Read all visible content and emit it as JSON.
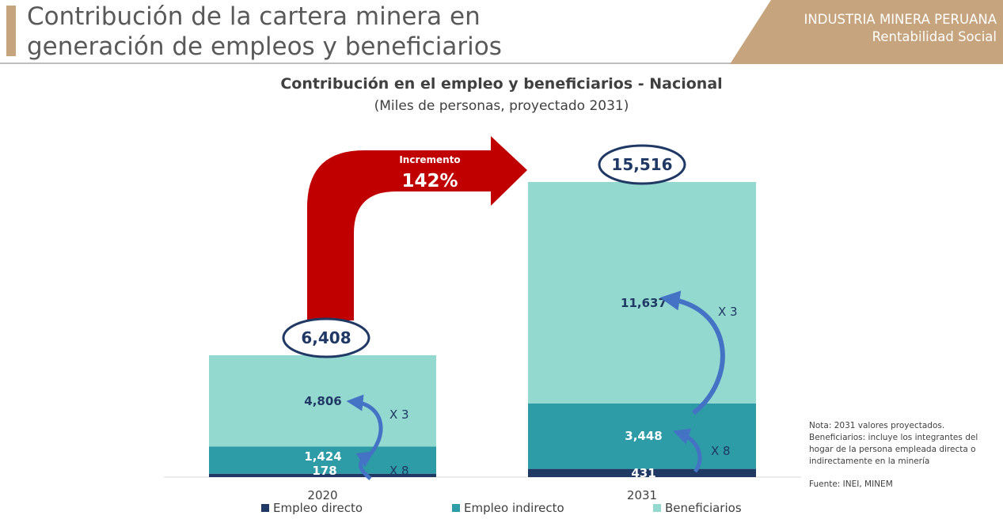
{
  "header": {
    "title_line1": "Contribución de la cartera minera en",
    "title_line2": "generación de empleos y beneficiarios",
    "brand_line1": "INDUSTRIA MINERA PERUANA",
    "brand_line2": "Rentabilidad Social",
    "accent_color": "#c5a47e"
  },
  "chart_data": {
    "type": "bar",
    "stacked": true,
    "title": "Contribución en el empleo y beneficiarios - Nacional",
    "subtitle": "(Miles de personas, proyectado 2031)",
    "categories": [
      "2020",
      "2031"
    ],
    "series": [
      {
        "name": "Empleo directo",
        "values": [
          178,
          431
        ],
        "color": "#1f3864"
      },
      {
        "name": "Empleo indirecto",
        "values": [
          1424,
          3448
        ],
        "color": "#2e9ca6"
      },
      {
        "name": "Beneficiarios",
        "values": [
          4806,
          11637
        ],
        "color": "#93d9d0"
      }
    ],
    "totals": [
      {
        "value": 6408,
        "label": "6,408"
      },
      {
        "value": 15516,
        "label": "15,516"
      }
    ],
    "value_labels": [
      [
        "178",
        "1,424",
        "4,806"
      ],
      [
        "431",
        "3,448",
        "11,637"
      ]
    ],
    "multipliers": [
      [
        "X 8",
        "X 3"
      ],
      [
        "X 8",
        "X 3"
      ]
    ],
    "increase": {
      "label": "Incremento",
      "value": "142%",
      "color": "#c00000"
    },
    "legend_position": "bottom",
    "grid": false
  },
  "notes": {
    "lines": [
      "Nota: 2031 valores proyectados.",
      "Beneficiarios: incluye los integrantes del",
      "hogar de la persona empleada directa o",
      "indirectamente en la minería"
    ],
    "source": "Fuente: INEI, MINEM"
  }
}
